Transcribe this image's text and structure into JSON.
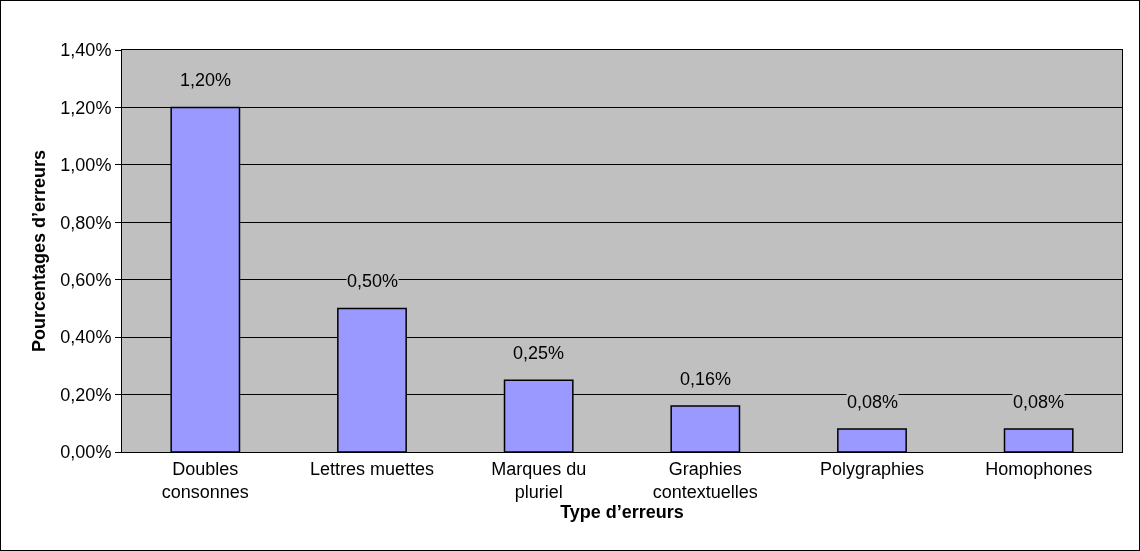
{
  "chart_data": {
    "type": "bar",
    "xlabel": "Type d’erreurs",
    "ylabel": "Pourcentages d’erreurs",
    "categories": [
      "Doubles consonnes",
      "Lettres muettes",
      "Marques du pluriel",
      "Graphies contextuelles",
      "Polygraphies",
      "Homophones"
    ],
    "values": [
      1.2,
      0.5,
      0.25,
      0.16,
      0.08,
      0.08
    ],
    "value_labels": [
      "1,20%",
      "0,50%",
      "0,25%",
      "0,16%",
      "0,08%",
      "0,08%"
    ],
    "color": "#9999ff",
    "ylim": [
      0,
      1.4
    ],
    "yticks": [
      {
        "value": 0,
        "label": "0,00%"
      },
      {
        "value": 0.2,
        "label": "0,20%"
      },
      {
        "value": 0.4,
        "label": "0,40%"
      },
      {
        "value": 0.6,
        "label": "0,60%"
      },
      {
        "value": 0.8,
        "label": "0,80%"
      },
      {
        "value": 1.0,
        "label": "1,00%"
      },
      {
        "value": 1.2,
        "label": "1,20%"
      },
      {
        "value": 1.4,
        "label": "1,40%"
      }
    ],
    "grid": "y",
    "legend": false
  }
}
